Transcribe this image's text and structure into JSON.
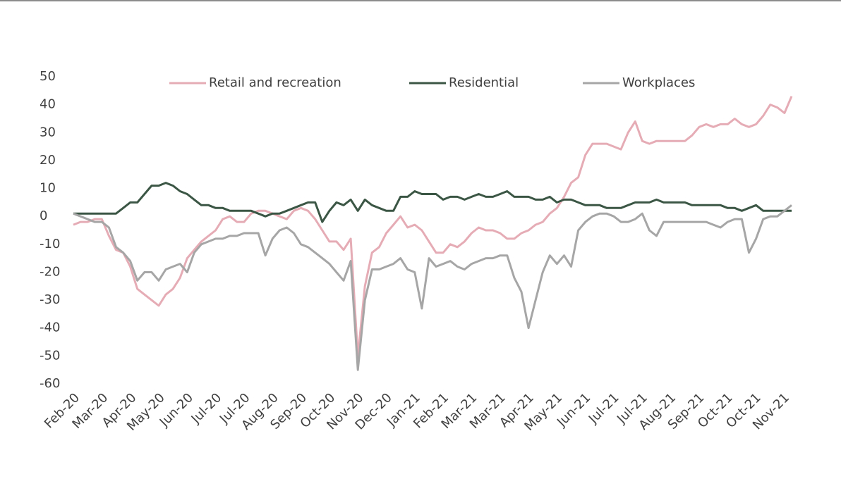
{
  "chart_data": {
    "type": "line",
    "xticks": [
      "Feb-20",
      "Mar-20",
      "Apr-20",
      "May-20",
      "Jun-20",
      "Jul-20",
      "Jul-20",
      "Aug-20",
      "Sep-20",
      "Oct-20",
      "Nov-20",
      "Dec-20",
      "Jan-21",
      "Feb-21",
      "Mar-21",
      "Mar-21",
      "Apr-21",
      "May-21",
      "Jun-21",
      "Jul-21",
      "Jul-21",
      "Aug-21",
      "Sep-21",
      "Oct-21",
      "Oct-21",
      "Nov-21"
    ],
    "ylim": [
      -60,
      50
    ],
    "yticks": [
      50,
      40,
      30,
      20,
      10,
      0,
      -10,
      -20,
      -30,
      -40,
      -50,
      -60
    ],
    "legend": "top",
    "series": [
      {
        "name": "Retail and recreation",
        "color": "#e6acb6",
        "values": [
          -3,
          -2,
          -2,
          -1,
          -1,
          -7,
          -12,
          -13,
          -18,
          -26,
          -28,
          -30,
          -32,
          -28,
          -26,
          -22,
          -15,
          -12,
          -9,
          -7,
          -5,
          -1,
          0,
          -2,
          -2,
          1,
          2,
          2,
          1,
          0,
          -1,
          2,
          3,
          2,
          -1,
          -5,
          -9,
          -9,
          -12,
          -8,
          -50,
          -25,
          -13,
          -11,
          -6,
          -3,
          0,
          -4,
          -3,
          -5,
          -9,
          -13,
          -13,
          -10,
          -11,
          -9,
          -6,
          -4,
          -5,
          -5,
          -6,
          -8,
          -8,
          -6,
          -5,
          -3,
          -2,
          1,
          3,
          7,
          12,
          14,
          22,
          26,
          26,
          26,
          25,
          24,
          30,
          34,
          27,
          26,
          27,
          27,
          27,
          27,
          27,
          29,
          32,
          33,
          32,
          33,
          33,
          35,
          33,
          32,
          33,
          36,
          40,
          39,
          37,
          43
        ]
      },
      {
        "name": "Residential",
        "color": "#3b5644",
        "values": [
          1,
          1,
          1,
          1,
          1,
          1,
          1,
          3,
          5,
          5,
          8,
          11,
          11,
          12,
          11,
          9,
          8,
          6,
          4,
          4,
          3,
          3,
          2,
          2,
          2,
          2,
          1,
          0,
          1,
          1,
          2,
          3,
          4,
          5,
          5,
          -2,
          2,
          5,
          4,
          6,
          2,
          6,
          4,
          3,
          2,
          2,
          7,
          7,
          9,
          8,
          8,
          8,
          6,
          7,
          7,
          6,
          7,
          8,
          7,
          7,
          8,
          9,
          7,
          7,
          7,
          6,
          6,
          7,
          5,
          6,
          6,
          5,
          4,
          4,
          4,
          3,
          3,
          3,
          4,
          5,
          5,
          5,
          6,
          5,
          5,
          5,
          5,
          4,
          4,
          4,
          4,
          4,
          3,
          3,
          2,
          3,
          4,
          2,
          2,
          2,
          2,
          2
        ]
      },
      {
        "name": "Workplaces",
        "color": "#a6a6a6",
        "values": [
          1,
          0,
          -1,
          -2,
          -2,
          -4,
          -11,
          -13,
          -16,
          -23,
          -20,
          -20,
          -23,
          -19,
          -18,
          -17,
          -20,
          -13,
          -10,
          -9,
          -8,
          -8,
          -7,
          -7,
          -6,
          -6,
          -6,
          -14,
          -8,
          -5,
          -4,
          -6,
          -10,
          -11,
          -13,
          -15,
          -17,
          -20,
          -23,
          -16,
          -55,
          -30,
          -19,
          -19,
          -18,
          -17,
          -15,
          -19,
          -20,
          -33,
          -15,
          -18,
          -17,
          -16,
          -18,
          -19,
          -17,
          -16,
          -15,
          -15,
          -14,
          -14,
          -22,
          -27,
          -40,
          -30,
          -20,
          -14,
          -17,
          -14,
          -18,
          -5,
          -2,
          0,
          1,
          1,
          0,
          -2,
          -2,
          -1,
          1,
          -5,
          -7,
          -2,
          -2,
          -2,
          -2,
          -2,
          -2,
          -2,
          -3,
          -4,
          -2,
          -1,
          -1,
          -13,
          -8,
          -1,
          0,
          0,
          2,
          4
        ]
      }
    ]
  }
}
